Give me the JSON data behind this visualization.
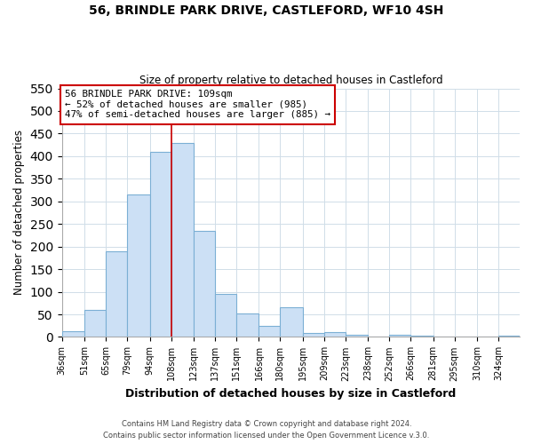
{
  "title": "56, BRINDLE PARK DRIVE, CASTLEFORD, WF10 4SH",
  "subtitle": "Size of property relative to detached houses in Castleford",
  "xlabel": "Distribution of detached houses by size in Castleford",
  "ylabel": "Number of detached properties",
  "bar_labels": [
    "36sqm",
    "51sqm",
    "65sqm",
    "79sqm",
    "94sqm",
    "108sqm",
    "123sqm",
    "137sqm",
    "151sqm",
    "166sqm",
    "180sqm",
    "195sqm",
    "209sqm",
    "223sqm",
    "238sqm",
    "252sqm",
    "266sqm",
    "281sqm",
    "295sqm",
    "310sqm",
    "324sqm"
  ],
  "bar_values": [
    13,
    60,
    190,
    315,
    410,
    430,
    235,
    95,
    52,
    25,
    65,
    8,
    10,
    4,
    1,
    5,
    2,
    1,
    0,
    0,
    2
  ],
  "bar_color": "#cce0f5",
  "bar_edge_color": "#7bafd4",
  "ylim": [
    0,
    550
  ],
  "yticks": [
    0,
    50,
    100,
    150,
    200,
    250,
    300,
    350,
    400,
    450,
    500,
    550
  ],
  "property_line_x": 108,
  "property_line_color": "#cc0000",
  "annotation_title": "56 BRINDLE PARK DRIVE: 109sqm",
  "annotation_line1": "← 52% of detached houses are smaller (985)",
  "annotation_line2": "47% of semi-detached houses are larger (885) →",
  "annotation_box_color": "#cc0000",
  "footer_line1": "Contains HM Land Registry data © Crown copyright and database right 2024.",
  "footer_line2": "Contains public sector information licensed under the Open Government Licence v.3.0.",
  "bin_edges": [
    36,
    51,
    65,
    79,
    94,
    108,
    123,
    137,
    151,
    166,
    180,
    195,
    209,
    223,
    238,
    252,
    266,
    281,
    295,
    310,
    324,
    338
  ]
}
